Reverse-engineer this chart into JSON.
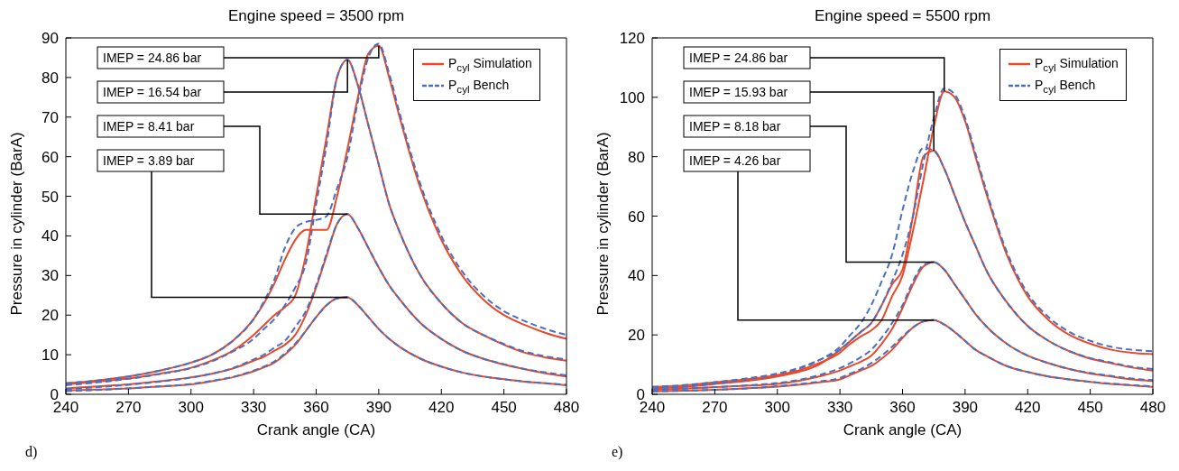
{
  "chart_data": [
    {
      "type": "line",
      "title": "Engine speed = 3500 rpm",
      "xlabel": "Crank angle (CA)",
      "ylabel": "Pressure in cylinder (BarA)",
      "x": [
        240,
        255,
        270,
        285,
        300,
        310,
        320,
        330,
        335,
        340,
        345,
        350,
        355,
        360,
        365,
        370,
        375,
        380,
        385,
        390,
        395,
        400,
        410,
        420,
        430,
        440,
        450,
        460,
        470,
        480
      ],
      "xlim": [
        240,
        480
      ],
      "xticks": [
        240,
        270,
        300,
        330,
        360,
        390,
        420,
        450,
        480
      ],
      "ylim": [
        0,
        90
      ],
      "yticks": [
        0,
        10,
        20,
        30,
        40,
        50,
        60,
        70,
        80,
        90
      ],
      "grid": false,
      "legend": "top right",
      "series": [
        {
          "name": "P$_{cyl}$ Simulation",
          "color": "#e8492a",
          "line_style": "solid",
          "values": [
            1.0,
            1.2,
            1.5,
            2,
            2.5,
            3.3,
            4.3,
            5.8,
            6.8,
            8,
            10,
            12.5,
            16,
            19.5,
            22.5,
            24.2,
            24.5,
            22.5,
            19.5,
            16.5,
            14,
            12,
            9,
            7,
            5.5,
            4.5,
            3.8,
            3.2,
            2.8,
            2.3
          ]
        },
        {
          "name": "P$_{cyl}$ Bench",
          "color": "#4a6fc0",
          "line_style": "dashed",
          "values": [
            0.8,
            1.1,
            1.5,
            2,
            2.6,
            3.4,
            4.4,
            6,
            7,
            8.3,
            10.3,
            12.8,
            16,
            19.5,
            22.5,
            24.2,
            24.5,
            22.5,
            19.5,
            16.5,
            14,
            12,
            9,
            7,
            5.5,
            4.5,
            3.8,
            3.2,
            2.8,
            2.4
          ]
        },
        {
          "color": "#e8492a",
          "line_style": "solid",
          "values": [
            1.5,
            2,
            2.5,
            3.3,
            4.3,
            5.2,
            6.5,
            8.5,
            9.5,
            11,
            12.5,
            15,
            20,
            27,
            35,
            43,
            45.5,
            42,
            37,
            32,
            27.5,
            24,
            18,
            14,
            11,
            9,
            7.5,
            6.3,
            5.3,
            4.5
          ]
        },
        {
          "color": "#4a6fc0",
          "line_style": "dashed",
          "values": [
            1.3,
            1.8,
            2.4,
            3.2,
            4.2,
            5.2,
            6.6,
            8.8,
            10,
            11.8,
            13.5,
            17,
            21,
            27.5,
            35.5,
            43,
            45.5,
            42,
            37,
            32,
            27.5,
            24,
            18,
            14,
            11,
            9,
            7.6,
            6.4,
            5.5,
            4.8
          ]
        },
        {
          "color": "#e8492a",
          "line_style": "solid",
          "values": [
            2.5,
            3.2,
            4,
            5.2,
            6.7,
            8.5,
            11,
            15,
            17.5,
            20,
            22,
            25,
            35,
            50,
            65,
            80,
            84.5,
            78,
            68,
            58,
            48,
            41,
            30,
            23,
            18,
            15,
            12.5,
            10.5,
            9.3,
            8.5
          ]
        },
        {
          "color": "#4a6fc0",
          "line_style": "dashed",
          "values": [
            2.3,
            3,
            3.9,
            5.1,
            6.6,
            8.3,
            10.8,
            14,
            16.5,
            19,
            22.5,
            27,
            33,
            48,
            63,
            80,
            84.5,
            78,
            68,
            58,
            48,
            41,
            30,
            23,
            18,
            15,
            12.7,
            10.8,
            9.6,
            8.8
          ]
        },
        {
          "color": "#e8492a",
          "line_style": "solid",
          "values": [
            2.8,
            3.5,
            4.5,
            6,
            8,
            10,
            13.5,
            19,
            23,
            28,
            34,
            39,
            41.5,
            41.5,
            41.5,
            50,
            62,
            75,
            86,
            88,
            80,
            70,
            52,
            39,
            30,
            24,
            20,
            17.5,
            15.5,
            14
          ]
        },
        {
          "color": "#4a6fc0",
          "line_style": "dashed",
          "values": [
            2.8,
            3.5,
            4.5,
            6,
            8,
            10,
            13.5,
            19,
            23.5,
            29,
            37,
            42,
            43.5,
            44,
            45,
            52,
            60,
            74,
            85,
            88.5,
            81,
            71,
            53,
            40,
            31,
            25,
            21,
            18.5,
            16.5,
            15
          ]
        }
      ],
      "annotations": [
        "IMEP = 24.86 bar",
        "IMEP = 16.54 bar",
        "IMEP = 8.41 bar",
        "IMEP = 3.89 bar",
        "d)"
      ]
    },
    {
      "type": "line",
      "title": "Engine speed = 5500 rpm",
      "xlabel": "Crank angle (CA)",
      "ylabel": "Pressure in cylinder (BarA)",
      "x": [
        240,
        255,
        270,
        285,
        300,
        310,
        320,
        330,
        335,
        340,
        345,
        350,
        355,
        360,
        365,
        370,
        375,
        380,
        385,
        390,
        395,
        400,
        410,
        420,
        430,
        440,
        450,
        460,
        470,
        480
      ],
      "xlim": [
        240,
        480
      ],
      "xticks": [
        240,
        270,
        300,
        330,
        360,
        390,
        420,
        450,
        480
      ],
      "ylim": [
        0,
        120
      ],
      "yticks": [
        0,
        20,
        40,
        60,
        80,
        100,
        120
      ],
      "grid": false,
      "legend": "top right",
      "series": [
        {
          "name": "P$_{cyl}$ Simulation",
          "color": "#e8492a",
          "line_style": "solid",
          "values": [
            1,
            1.2,
            1.5,
            2,
            2.6,
            3.2,
            4,
            5,
            6.5,
            8,
            9.5,
            12,
            15,
            19,
            22.5,
            24.5,
            25,
            23.5,
            21,
            18,
            15,
            13,
            9.5,
            7.5,
            6,
            5,
            4.2,
            3.5,
            3,
            2.5
          ]
        },
        {
          "name": "P$_{cyl}$ Bench",
          "color": "#4a6fc0",
          "line_style": "dashed",
          "values": [
            1,
            1.2,
            1.5,
            2,
            2.7,
            3.4,
            4.3,
            5.5,
            7,
            8.5,
            10.5,
            13,
            16,
            19.5,
            22.5,
            24.5,
            25,
            23.5,
            21,
            18,
            15,
            13,
            9.5,
            7.5,
            6,
            5,
            4.2,
            3.6,
            3.1,
            2.7
          ]
        },
        {
          "color": "#e8492a",
          "line_style": "solid",
          "values": [
            1.5,
            1.9,
            2.4,
            2.9,
            3.5,
            4.5,
            6,
            8,
            9.5,
            11,
            13,
            17,
            22,
            29,
            37,
            43,
            44.5,
            42,
            37,
            32,
            27,
            23,
            17,
            13,
            10.5,
            8.5,
            7,
            6,
            5,
            4.5
          ]
        },
        {
          "color": "#4a6fc0",
          "line_style": "dashed",
          "values": [
            1.5,
            1.9,
            2.4,
            3,
            3.8,
            4.8,
            6.5,
            8.8,
            10.5,
            12.5,
            15,
            19,
            24,
            30,
            38,
            43.5,
            44.5,
            42,
            37,
            32,
            27,
            23,
            17,
            13,
            10.5,
            8.5,
            7.2,
            6.2,
            5.3,
            4.8
          ]
        },
        {
          "color": "#e8492a",
          "line_style": "solid",
          "values": [
            2,
            2.5,
            3.5,
            4.5,
            6,
            7.5,
            10,
            15,
            18,
            21,
            24,
            30,
            37,
            42,
            60,
            80,
            82,
            76,
            67,
            58,
            50,
            42,
            31,
            23,
            18,
            14.5,
            12,
            10.5,
            9,
            8
          ]
        },
        {
          "color": "#4a6fc0",
          "line_style": "dashed",
          "values": [
            2,
            2.6,
            3.6,
            4.8,
            6.5,
            8.5,
            11.5,
            16,
            20,
            24,
            30,
            38,
            47,
            62,
            75,
            83,
            82,
            76,
            67,
            58,
            50,
            42,
            31,
            23,
            18,
            14.5,
            12.2,
            10.7,
            9.3,
            8.5
          ]
        },
        {
          "color": "#e8492a",
          "line_style": "solid",
          "values": [
            2.5,
            3,
            4,
            5,
            6.5,
            8,
            10.5,
            14,
            17,
            19.5,
            21.5,
            25,
            33,
            40,
            55,
            72,
            90,
            102,
            100,
            92,
            80,
            68,
            47,
            33,
            25,
            20,
            17,
            15,
            14,
            13.5
          ]
        },
        {
          "color": "#4a6fc0",
          "line_style": "dashed",
          "values": [
            2.5,
            3.1,
            4.1,
            5.3,
            7,
            8.8,
            11.5,
            15,
            18,
            21,
            24,
            30,
            38,
            47,
            60,
            78,
            93,
            103,
            101,
            93,
            81,
            69,
            48,
            34,
            26,
            21,
            18,
            16,
            15,
            14.5
          ]
        }
      ],
      "annotations": [
        "IMEP = 24.86 bar",
        "IMEP = 15.93 bar",
        "IMEP = 8.18 bar",
        "IMEP = 4.26 bar",
        "e)"
      ]
    }
  ]
}
